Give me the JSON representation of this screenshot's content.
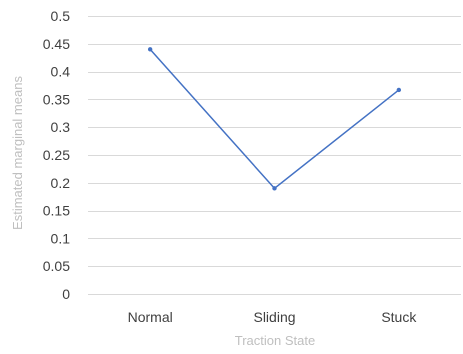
{
  "chart_data": {
    "type": "line",
    "title": "",
    "xlabel": "Traction State",
    "ylabel": "Estimated marginal means",
    "categories": [
      "Normal",
      "Sliding",
      "Stuck"
    ],
    "series": [
      {
        "values": [
          0.44,
          0.19,
          0.367
        ]
      }
    ],
    "ylim": [
      0,
      0.5
    ],
    "yticks": [
      "0",
      "0.05",
      "0.1",
      "0.15",
      "0.2",
      "0.25",
      "0.3",
      "0.35",
      "0.4",
      "0.45",
      "0.5"
    ],
    "grid": true,
    "legend": "none",
    "line_color": "#4472c4"
  }
}
